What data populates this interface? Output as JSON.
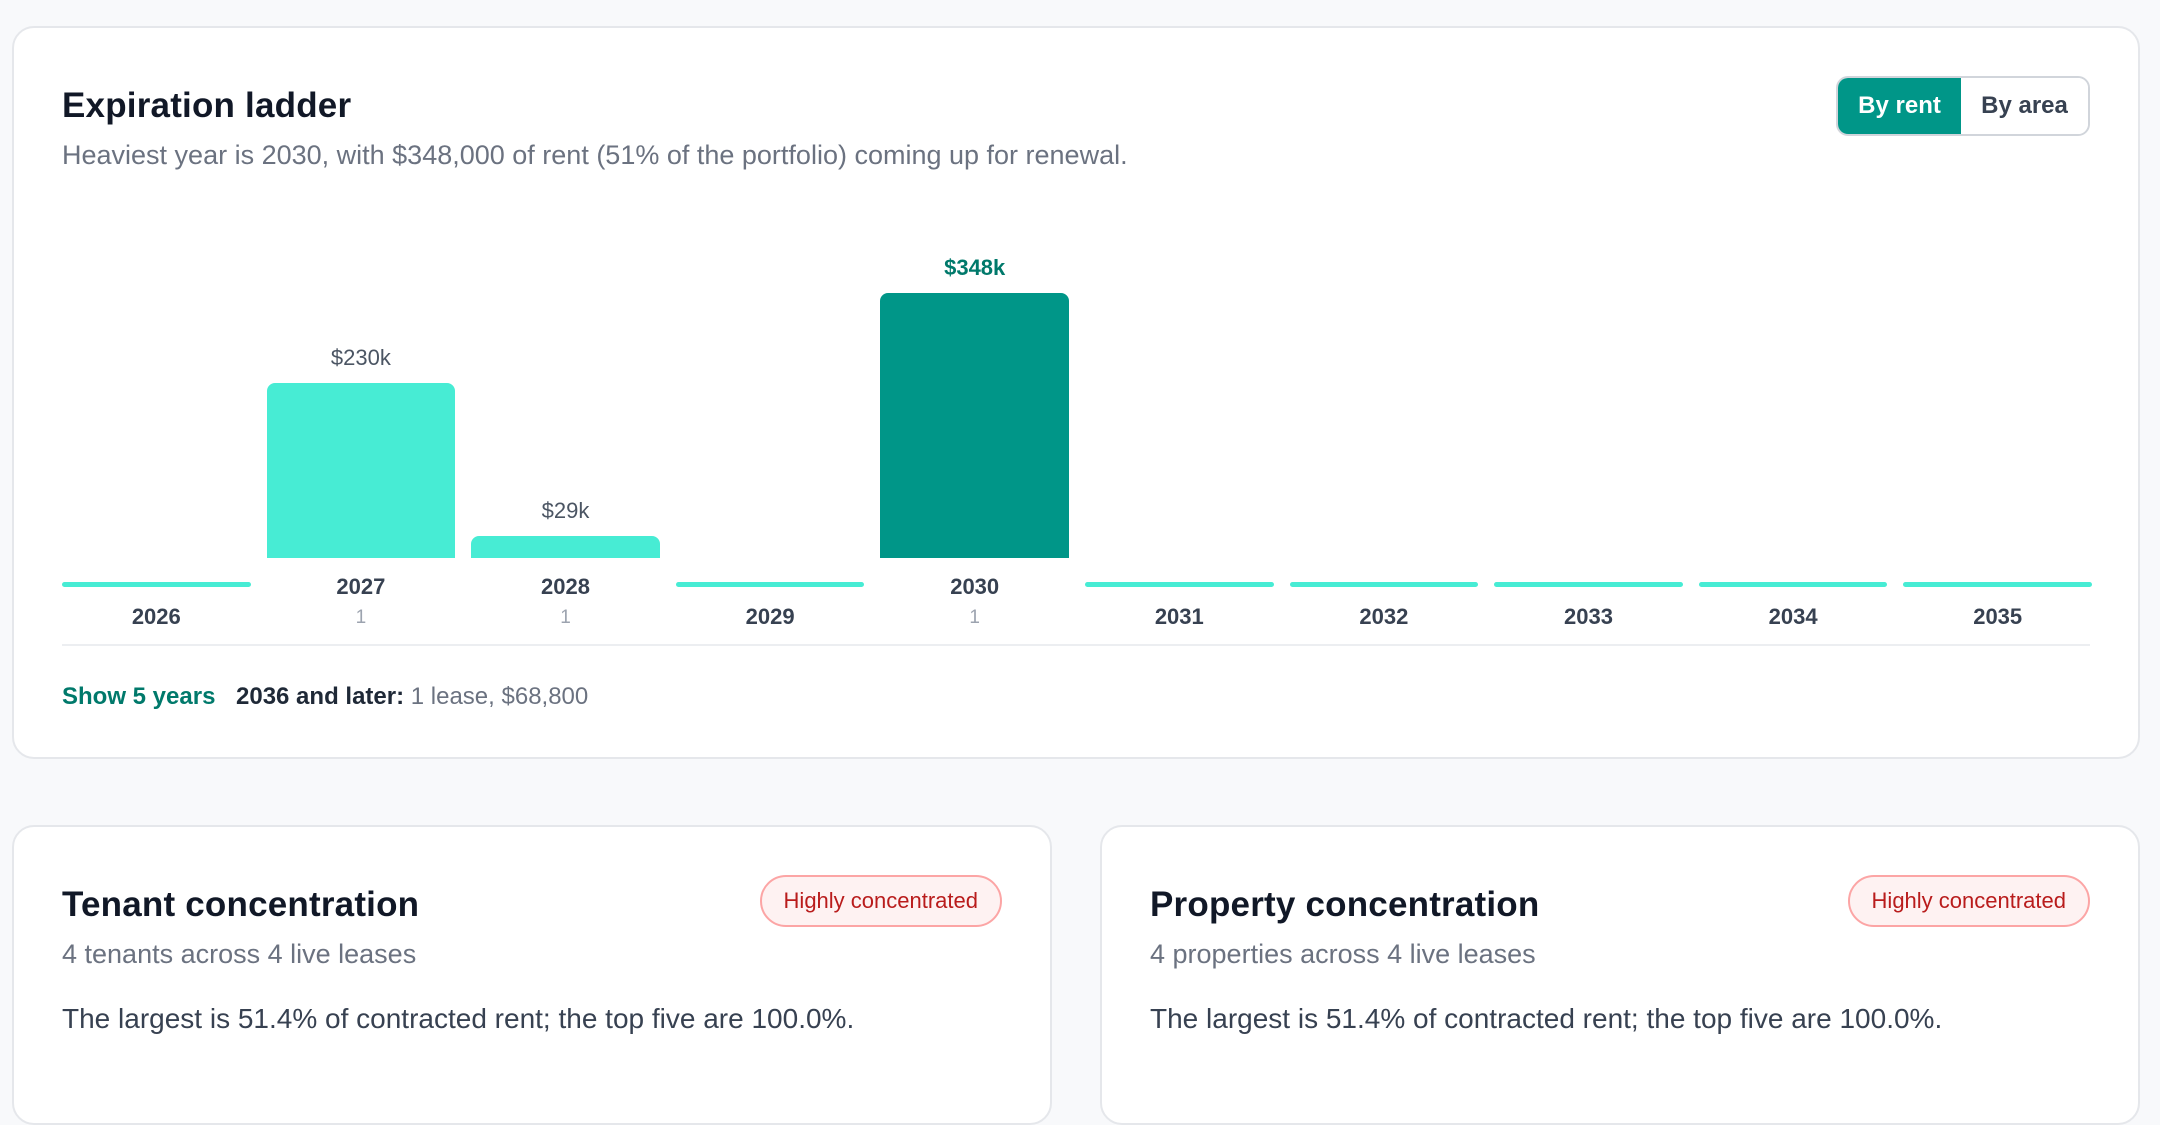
{
  "ladder": {
    "title": "Expiration ladder",
    "subtitle": "Heaviest year is 2030, with $348,000 of rent (51% of the portfolio) coming up for renewal.",
    "toggle": {
      "by_rent": "By rent",
      "by_area": "By area"
    },
    "show_years": "Show 5 years",
    "later_label": "2036 and later:",
    "later_value": "1 lease, $68,800"
  },
  "chart_data": {
    "type": "bar",
    "categories": [
      "2026",
      "2027",
      "2028",
      "2029",
      "2030",
      "2031",
      "2032",
      "2033",
      "2034",
      "2035"
    ],
    "values": [
      0,
      230000,
      29000,
      0,
      348000,
      0,
      0,
      0,
      0,
      0
    ],
    "value_labels": [
      "",
      "$230k",
      "$29k",
      "",
      "$348k",
      "",
      "",
      "",
      "",
      ""
    ],
    "lease_counts": [
      "",
      "1",
      "1",
      "",
      "1",
      "",
      "",
      "",
      "",
      ""
    ],
    "highlight_index": 4,
    "colors": {
      "bar": "#47ecd4",
      "highlight": "#009688",
      "label": "#4b5563",
      "highlight_label": "#00796b"
    }
  },
  "tenant": {
    "title": "Tenant concentration",
    "badge": "Highly concentrated",
    "subtitle": "4 tenants across 4 live leases",
    "body": "The largest is 51.4% of contracted rent; the top five are 100.0%."
  },
  "property": {
    "title": "Property concentration",
    "badge": "Highly concentrated",
    "subtitle": "4 properties across 4 live leases",
    "body": "The largest is 51.4% of contracted rent; the top five are 100.0%."
  }
}
